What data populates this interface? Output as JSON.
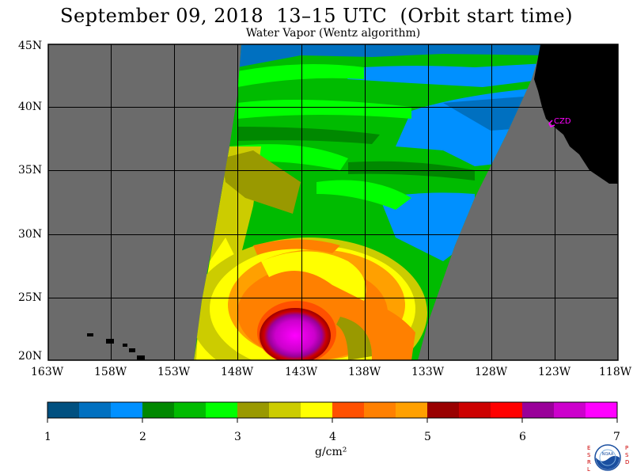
{
  "title": "September 09, 2018  13–15 UTC  (Orbit start time)",
  "subtitle": "Water Vapor (Wentz algorithm)",
  "map": {
    "lat_labels": [
      "45N",
      "40N",
      "35N",
      "30N",
      "25N",
      "20N"
    ],
    "lon_labels": [
      "163W",
      "158W",
      "153W",
      "148W",
      "143W",
      "138W",
      "133W",
      "128W",
      "123W",
      "118W"
    ],
    "station_label": "CZD",
    "colors": {
      "no_data": "#6b6b6b",
      "land": "#000000",
      "station": "#ff00ff",
      "grid": "#000000"
    }
  },
  "colorbar": {
    "ticks": [
      "1",
      "2",
      "3",
      "4",
      "5",
      "6",
      "7"
    ],
    "units": "g/cm²",
    "colors": [
      "#005080",
      "#0070c0",
      "#0090ff",
      "#008800",
      "#00bb00",
      "#00ff00",
      "#999900",
      "#cccc00",
      "#ffff00",
      "#ff5000",
      "#ff8000",
      "#ffa000",
      "#990000",
      "#cc0000",
      "#ff0000",
      "#990099",
      "#cc00cc",
      "#ff00ff"
    ]
  },
  "logo": {
    "left_letters": "ESRL",
    "right_letters": "PSD",
    "center_text": "NOAA"
  }
}
